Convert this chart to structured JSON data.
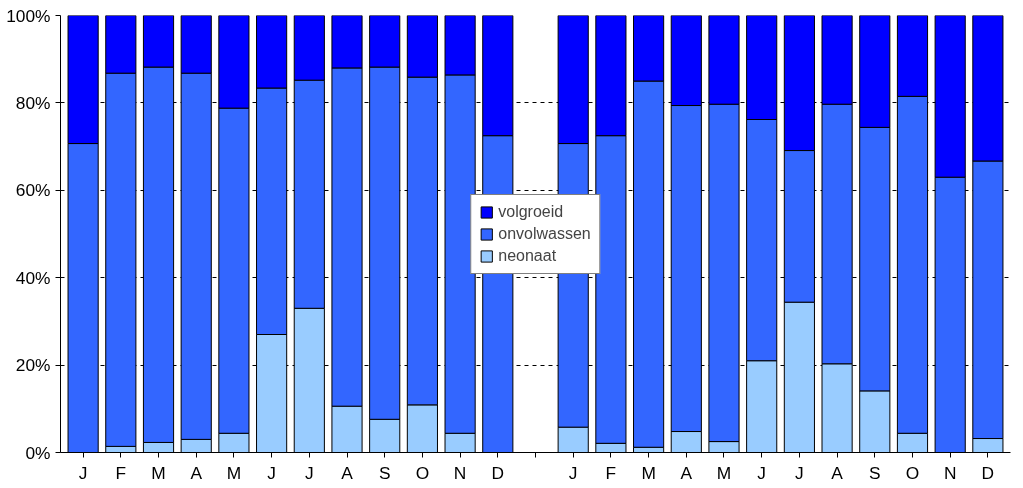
{
  "chart_data": {
    "type": "bar",
    "stacked": true,
    "categories": [
      "J",
      "F",
      "M",
      "A",
      "M",
      "J",
      "J",
      "A",
      "S",
      "O",
      "N",
      "D",
      null,
      "J",
      "F",
      "M",
      "A",
      "M",
      "J",
      "J",
      "A",
      "S",
      "O",
      "N",
      "D"
    ],
    "series": [
      {
        "name": "neonaat",
        "color": "#99ccff",
        "values": [
          0,
          1.4,
          2.3,
          3.0,
          4.4,
          27.0,
          33.0,
          10.6,
          7.6,
          10.9,
          4.4,
          0,
          null,
          5.8,
          2.1,
          1.2,
          4.8,
          2.5,
          21.0,
          34.4,
          20.3,
          14.1,
          4.4,
          0,
          3.2
        ]
      },
      {
        "name": "onvolwassen",
        "color": "#3366ff",
        "values": [
          70.7,
          85.4,
          85.9,
          83.8,
          74.4,
          56.4,
          52.2,
          77.4,
          80.6,
          75.0,
          82.0,
          72.5,
          null,
          64.9,
          70.4,
          83.8,
          74.6,
          77.2,
          55.2,
          34.7,
          59.4,
          60.3,
          77.1,
          63.0,
          63.5
        ]
      },
      {
        "name": "volgroeid",
        "color": "#0000ff",
        "values": [
          29.3,
          13.2,
          11.8,
          13.2,
          21.2,
          16.6,
          14.8,
          12.0,
          11.8,
          14.1,
          13.6,
          27.5,
          null,
          29.3,
          27.5,
          15.0,
          20.6,
          20.3,
          23.8,
          30.9,
          20.3,
          25.6,
          18.5,
          37.0,
          33.3
        ]
      }
    ],
    "ylim": [
      0,
      100
    ],
    "yticks": [
      {
        "value": 0,
        "label": "0%"
      },
      {
        "value": 20,
        "label": "20%"
      },
      {
        "value": 40,
        "label": "40%"
      },
      {
        "value": 60,
        "label": "60%"
      },
      {
        "value": 80,
        "label": "80%"
      },
      {
        "value": 100,
        "label": "100%"
      }
    ],
    "grid": "y",
    "legend": "center"
  }
}
